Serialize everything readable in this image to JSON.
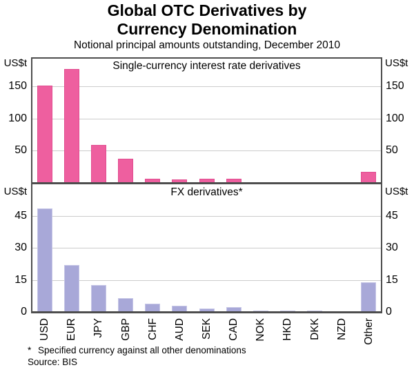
{
  "title": {
    "line1": "Global OTC Derivatives by",
    "line2": "Currency Denomination",
    "subtitle": "Notional principal amounts outstanding, December 2010"
  },
  "footnote": {
    "marker": "*",
    "text": "Specified currency against all other denominations"
  },
  "source": "Source: BIS",
  "colors": {
    "background": "#FFFFFF",
    "text": "#000000",
    "frame": "#4D4D4D",
    "grid": "#CCCCCC",
    "interest_rate_bars": "#EE5F9F",
    "fx_bars": "#A8A8D8"
  },
  "chart_data": [
    {
      "type": "bar",
      "panel": "top",
      "title": "Single-currency interest rate derivatives",
      "unit": "US$t",
      "categories": [
        "USD",
        "EUR",
        "JPY",
        "GBP",
        "CHF",
        "AUD",
        "SEK",
        "CAD",
        "NOK",
        "HKD",
        "DKK",
        "NZD",
        "Other"
      ],
      "values": [
        151,
        177,
        59,
        38,
        6,
        5,
        6.5,
        6,
        1,
        0.8,
        1,
        0.3,
        17.5
      ],
      "ylim": [
        0,
        195
      ],
      "yticks": [
        50,
        100,
        150
      ],
      "grid": true,
      "legend": "none",
      "bar_color": "#EE5F9F",
      "bar_border": "#E14C90"
    },
    {
      "type": "bar",
      "panel": "bottom",
      "title": "FX derivatives*",
      "unit": "US$t",
      "categories": [
        "USD",
        "EUR",
        "JPY",
        "GBP",
        "CHF",
        "AUD",
        "SEK",
        "CAD",
        "NOK",
        "HKD",
        "DKK",
        "NZD",
        "Other"
      ],
      "values": [
        48.5,
        22,
        12.5,
        6.5,
        4,
        3,
        1.5,
        2.3,
        0.7,
        0.6,
        0.5,
        0.2,
        14
      ],
      "ylim": [
        0,
        60
      ],
      "yticks": [
        0,
        15,
        30,
        45
      ],
      "grid": true,
      "legend": "none",
      "bar_color": "#A8A8D8",
      "bar_border": "#C6C6E6"
    }
  ]
}
